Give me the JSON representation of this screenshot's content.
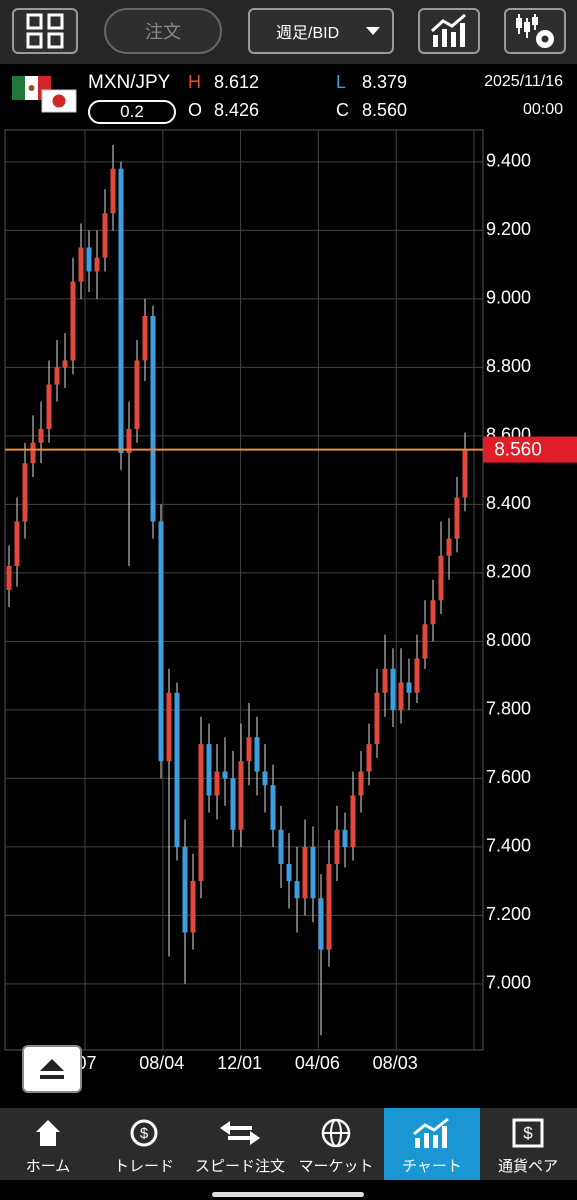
{
  "toolbar": {
    "order_button": "注文",
    "period_select": "週足/BID"
  },
  "quote": {
    "pair": "MXN/JPY",
    "spread": "0.2",
    "high_label": "H",
    "high": "8.612",
    "open_label": "O",
    "open": "8.426",
    "low_label": "L",
    "low": "8.379",
    "close_label": "C",
    "close": "8.560",
    "date": "2025/11/16",
    "time": "00:00"
  },
  "chart_data": {
    "type": "candlestick",
    "ylim": [
      6.807,
      9.493
    ],
    "yticks": [
      {
        "value": 7.0,
        "label": "7.000"
      },
      {
        "value": 7.2,
        "label": "7.200"
      },
      {
        "value": 7.4,
        "label": "7.400"
      },
      {
        "value": 7.6,
        "label": "7.600"
      },
      {
        "value": 7.8,
        "label": "7.800"
      },
      {
        "value": 8.0,
        "label": "8.000"
      },
      {
        "value": 8.2,
        "label": "8.200"
      },
      {
        "value": 8.4,
        "label": "8.400"
      },
      {
        "value": 8.6,
        "label": "8.600"
      },
      {
        "value": 8.8,
        "label": "8.800"
      },
      {
        "value": 9.0,
        "label": "9.000"
      },
      {
        "value": 9.2,
        "label": "9.200"
      },
      {
        "value": 9.4,
        "label": "9.400"
      }
    ],
    "xtick_labels": [
      "/07",
      "08/04",
      "12/01",
      "04/06",
      "08/03"
    ],
    "grid": true,
    "up_color": "#e4483b",
    "down_color": "#3d9ee0",
    "last_price": {
      "value": 8.56,
      "label": "8.560"
    },
    "last_line_color": "#f08a3c",
    "last_tag_color": "#e01e2a",
    "open": [
      8.15,
      8.22,
      8.35,
      8.52,
      8.58,
      8.62,
      8.75,
      8.8,
      8.82,
      9.05,
      9.15,
      9.08,
      9.12,
      9.25,
      9.38,
      8.55,
      8.62,
      8.82,
      8.95,
      8.35,
      7.65,
      7.85,
      7.4,
      7.15,
      7.3,
      7.7,
      7.55,
      7.62,
      7.6,
      7.45,
      7.65,
      7.72,
      7.62,
      7.58,
      7.45,
      7.35,
      7.3,
      7.25,
      7.4,
      7.25,
      7.1,
      7.35,
      7.45,
      7.4,
      7.55,
      7.62,
      7.7,
      7.85,
      7.92,
      7.8,
      7.88,
      7.85,
      7.95,
      8.05,
      8.12,
      8.25,
      8.3,
      8.42
    ],
    "high": [
      8.28,
      8.42,
      8.58,
      8.66,
      8.7,
      8.82,
      8.88,
      8.9,
      9.12,
      9.22,
      9.2,
      9.2,
      9.32,
      9.45,
      9.4,
      8.7,
      8.88,
      9.0,
      8.98,
      8.4,
      7.92,
      7.88,
      7.48,
      7.38,
      7.78,
      7.76,
      7.7,
      7.72,
      7.68,
      7.76,
      7.82,
      7.78,
      7.7,
      7.64,
      7.52,
      7.44,
      7.4,
      7.48,
      7.46,
      7.32,
      7.42,
      7.52,
      7.5,
      7.62,
      7.68,
      7.76,
      7.92,
      8.02,
      7.98,
      7.98,
      7.95,
      8.02,
      8.12,
      8.18,
      8.35,
      8.36,
      8.48,
      8.61
    ],
    "low": [
      8.1,
      8.16,
      8.3,
      8.48,
      8.52,
      8.58,
      8.7,
      8.74,
      8.78,
      9.0,
      9.02,
      9.0,
      9.08,
      9.2,
      8.5,
      8.22,
      8.58,
      8.76,
      8.3,
      7.6,
      7.08,
      7.36,
      7.0,
      7.1,
      7.25,
      7.5,
      7.48,
      7.52,
      7.4,
      7.4,
      7.58,
      7.55,
      7.5,
      7.4,
      7.28,
      7.22,
      7.15,
      7.2,
      7.18,
      6.85,
      7.05,
      7.3,
      7.34,
      7.36,
      7.5,
      7.58,
      7.66,
      7.78,
      7.75,
      7.76,
      7.8,
      7.82,
      7.92,
      8.0,
      8.08,
      8.18,
      8.26,
      8.38
    ],
    "close": [
      8.22,
      8.35,
      8.52,
      8.58,
      8.62,
      8.75,
      8.8,
      8.82,
      9.05,
      9.15,
      9.08,
      9.12,
      9.25,
      9.38,
      8.55,
      8.62,
      8.82,
      8.95,
      8.35,
      7.65,
      7.85,
      7.4,
      7.15,
      7.3,
      7.7,
      7.55,
      7.62,
      7.6,
      7.45,
      7.65,
      7.72,
      7.62,
      7.58,
      7.45,
      7.35,
      7.3,
      7.25,
      7.4,
      7.25,
      7.1,
      7.35,
      7.45,
      7.4,
      7.55,
      7.62,
      7.7,
      7.85,
      7.92,
      7.8,
      7.88,
      7.85,
      7.95,
      8.05,
      8.12,
      8.25,
      8.3,
      8.42,
      8.56
    ]
  },
  "nav": [
    "ホーム",
    "トレード",
    "スピード注文",
    "マーケット",
    "チャート",
    "通貨ペア"
  ]
}
